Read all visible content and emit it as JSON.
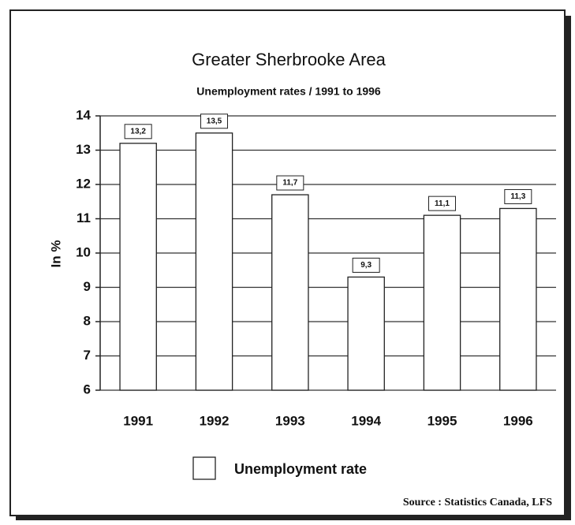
{
  "chart_data": {
    "type": "bar",
    "title": "Greater Sherbrooke Area",
    "subtitle": "Unemployment rates /  1991 to 1996",
    "y_label": "In %",
    "source": "Source : Statistics Canada, LFS",
    "categories": [
      "1991",
      "1992",
      "1993",
      "1994",
      "1995",
      "1996"
    ],
    "series": [
      {
        "name": "Unemployment rate",
        "color": "#ffffff",
        "values": [
          13.2,
          13.5,
          11.7,
          9.3,
          11.1,
          11.3
        ],
        "value_labels": [
          "13,2",
          "13,5",
          "11,7",
          "9,3",
          "11,1",
          "11,3"
        ]
      }
    ],
    "ylim": [
      6,
      14
    ],
    "yticks": [
      6,
      7,
      8,
      9,
      10,
      11,
      12,
      13,
      14
    ],
    "grid": true,
    "legend": "bottom"
  }
}
